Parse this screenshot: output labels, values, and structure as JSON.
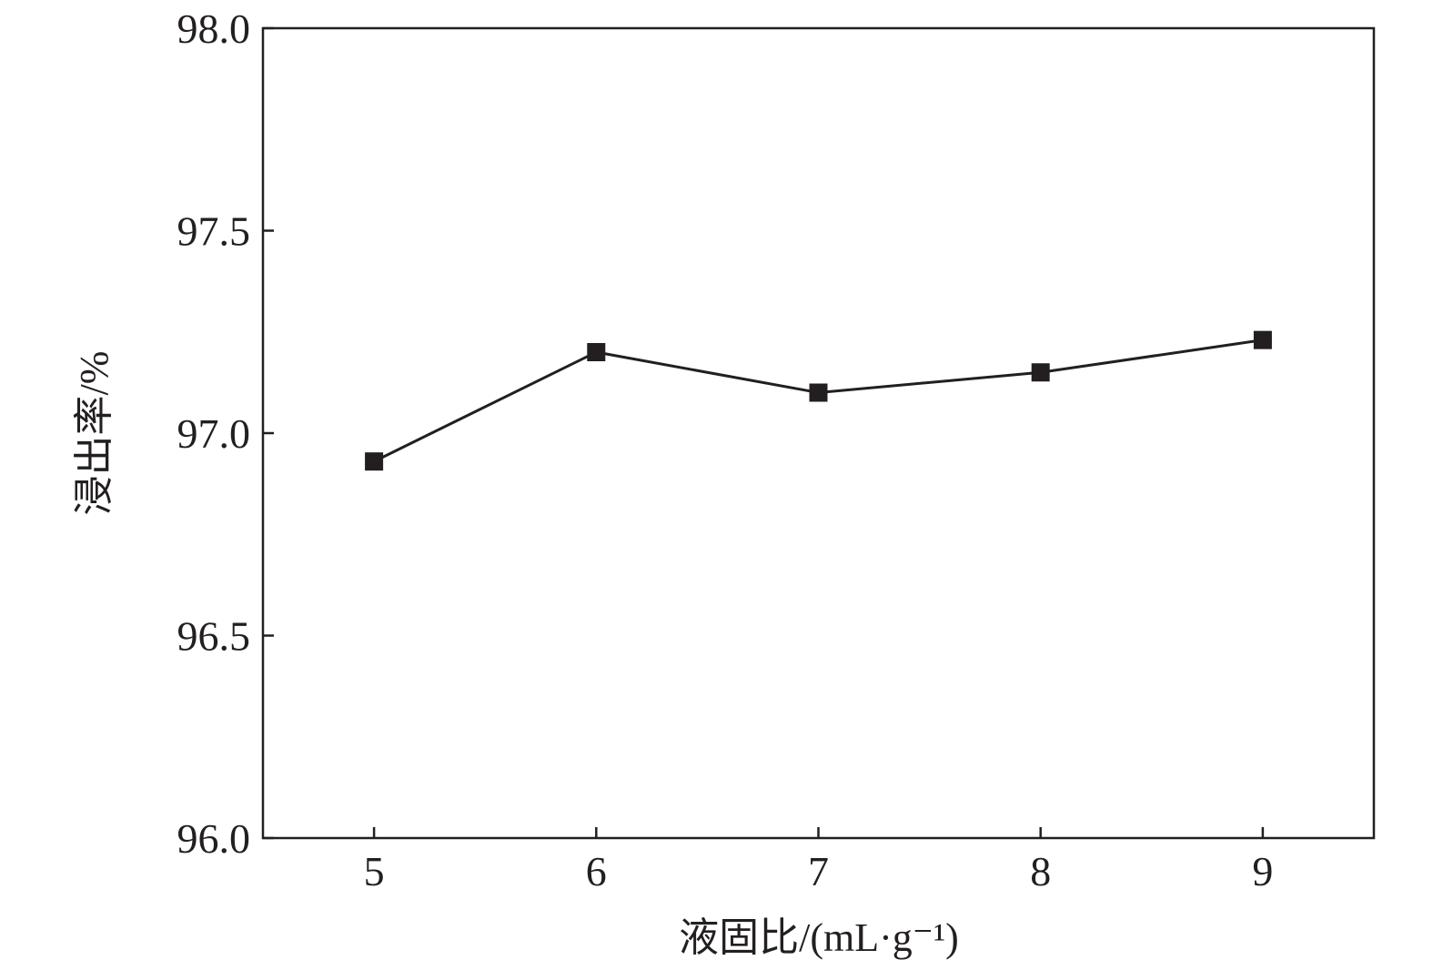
{
  "chart_data": {
    "type": "line",
    "title": "",
    "xlabel": "液固比/(mL·g⁻¹)",
    "ylabel": "浸出率/%",
    "x": [
      5,
      6,
      7,
      8,
      9
    ],
    "series": [
      {
        "values": [
          96.93,
          97.2,
          97.1,
          97.15,
          97.23
        ],
        "marker": "square",
        "color": "#231f20"
      }
    ],
    "xlim": [
      4.5,
      9.5
    ],
    "ylim": [
      96.0,
      98.0
    ],
    "xticks": [
      "5",
      "6",
      "7",
      "8",
      "9"
    ],
    "yticks": [
      "96.0",
      "96.5",
      "97.0",
      "97.5",
      "98.0"
    ],
    "grid": false,
    "legend": "none"
  }
}
